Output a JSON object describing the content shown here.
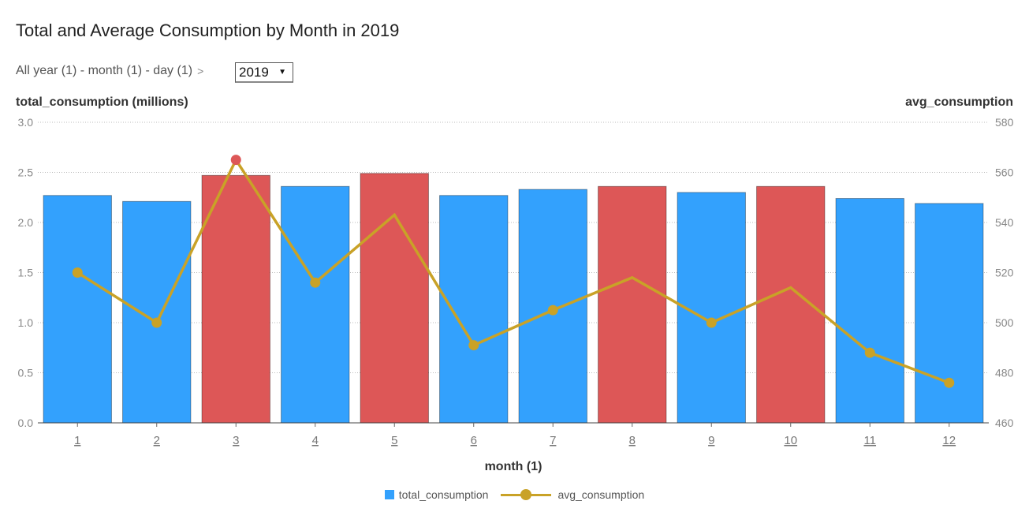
{
  "title": "Total and Average Consumption by Month in 2019",
  "breadcrumb": {
    "path": "All year (1) - month (1) - day (1)",
    "separator": ">"
  },
  "year_selector": {
    "value": "2019",
    "caret": "▼"
  },
  "colors": {
    "bar_default": "#33a1fd",
    "bar_highlight": "#dd5757",
    "line": "#c9a227",
    "point_highlight": "#dd5757"
  },
  "chart_data": {
    "type": "bar",
    "categories": [
      "1",
      "2",
      "3",
      "4",
      "5",
      "6",
      "7",
      "8",
      "9",
      "10",
      "11",
      "12"
    ],
    "xlabel": "month (1)",
    "ylabel": "total_consumption (millions)",
    "y2label": "avg_consumption",
    "ylim": [
      0,
      3.0
    ],
    "y2lim": [
      460,
      580
    ],
    "yticks": [
      "0.0",
      "0.5",
      "1.0",
      "1.5",
      "2.0",
      "2.5",
      "3.0"
    ],
    "y2ticks": [
      "460",
      "480",
      "500",
      "520",
      "540",
      "560",
      "580"
    ],
    "grid": true,
    "legend_position": "bottom",
    "series": [
      {
        "name": "total_consumption",
        "type": "bar",
        "axis": "left",
        "values": [
          2.27,
          2.21,
          2.47,
          2.36,
          2.49,
          2.27,
          2.33,
          2.36,
          2.3,
          2.36,
          2.24,
          2.19
        ],
        "highlighted": [
          false,
          false,
          true,
          false,
          true,
          false,
          false,
          true,
          false,
          true,
          false,
          false
        ]
      },
      {
        "name": "avg_consumption",
        "type": "line",
        "axis": "right",
        "values": [
          520,
          500,
          565,
          516,
          543,
          491,
          505,
          518,
          500,
          514,
          488,
          476
        ],
        "markers": [
          true,
          true,
          true,
          true,
          false,
          true,
          true,
          false,
          true,
          false,
          true,
          true
        ],
        "highlighted": [
          false,
          false,
          true,
          false,
          false,
          false,
          false,
          false,
          false,
          false,
          false,
          false
        ]
      }
    ]
  }
}
